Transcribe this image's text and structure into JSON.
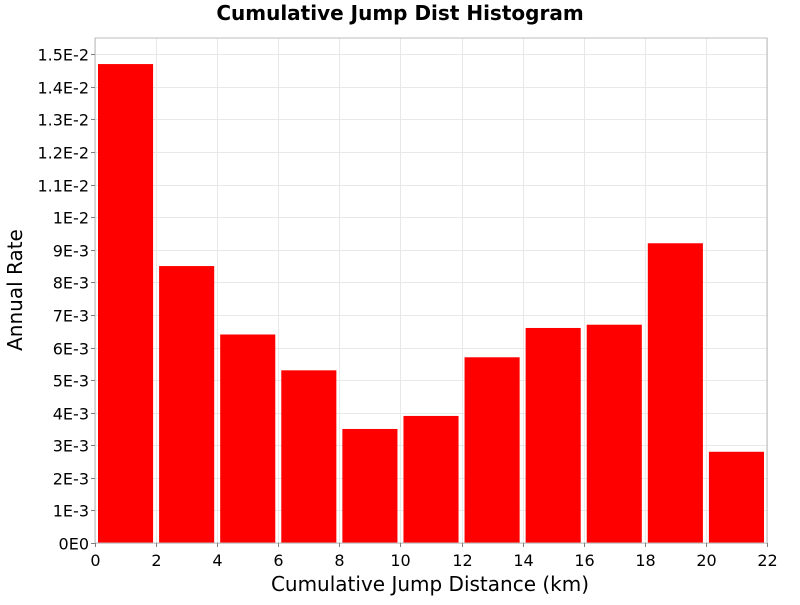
{
  "chart_data": {
    "type": "bar",
    "title": "Cumulative Jump Dist Histogram",
    "xlabel": "Cumulative Jump Distance (km)",
    "ylabel": "Annual Rate",
    "xlim": [
      0,
      22
    ],
    "ylim": [
      0,
      0.0155
    ],
    "x_ticks": [
      0,
      2,
      4,
      6,
      8,
      10,
      12,
      14,
      16,
      18,
      20,
      22
    ],
    "y_ticks": [
      {
        "value": 0,
        "label": "0E0"
      },
      {
        "value": 0.001,
        "label": "1E-3"
      },
      {
        "value": 0.002,
        "label": "2E-3"
      },
      {
        "value": 0.003,
        "label": "3E-3"
      },
      {
        "value": 0.004,
        "label": "4E-3"
      },
      {
        "value": 0.005,
        "label": "5E-3"
      },
      {
        "value": 0.006,
        "label": "6E-3"
      },
      {
        "value": 0.007,
        "label": "7E-3"
      },
      {
        "value": 0.008,
        "label": "8E-3"
      },
      {
        "value": 0.009,
        "label": "9E-3"
      },
      {
        "value": 0.01,
        "label": "1E-2"
      },
      {
        "value": 0.011,
        "label": "1.1E-2"
      },
      {
        "value": 0.012,
        "label": "1.2E-2"
      },
      {
        "value": 0.013,
        "label": "1.3E-2"
      },
      {
        "value": 0.014,
        "label": "1.4E-2"
      },
      {
        "value": 0.015,
        "label": "1.5E-2"
      }
    ],
    "bins": [
      {
        "x_start": 0,
        "x_end": 2,
        "value": 0.0147
      },
      {
        "x_start": 2,
        "x_end": 4,
        "value": 0.0085
      },
      {
        "x_start": 4,
        "x_end": 6,
        "value": 0.0064
      },
      {
        "x_start": 6,
        "x_end": 8,
        "value": 0.0053
      },
      {
        "x_start": 8,
        "x_end": 10,
        "value": 0.0035
      },
      {
        "x_start": 10,
        "x_end": 12,
        "value": 0.0039
      },
      {
        "x_start": 12,
        "x_end": 14,
        "value": 0.0057
      },
      {
        "x_start": 14,
        "x_end": 16,
        "value": 0.0066
      },
      {
        "x_start": 16,
        "x_end": 18,
        "value": 0.0067
      },
      {
        "x_start": 18,
        "x_end": 20,
        "value": 0.0092
      },
      {
        "x_start": 20,
        "x_end": 22,
        "value": 0.0028
      }
    ],
    "bar_color": "#ff0000",
    "grid": true,
    "legend": "none"
  }
}
